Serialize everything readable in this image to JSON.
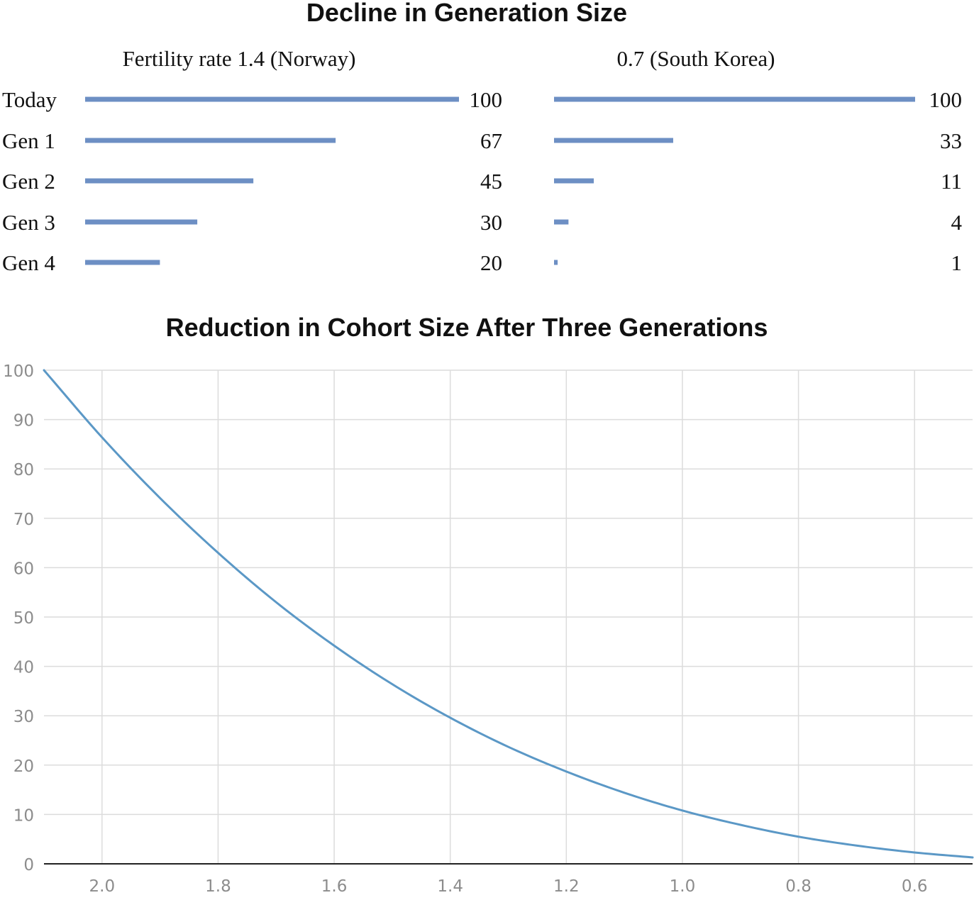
{
  "chart_data": [
    {
      "type": "bar",
      "orientation": "horizontal",
      "title": "Decline in Generation Size",
      "categories": [
        "Today",
        "Gen 1",
        "Gen 2",
        "Gen 3",
        "Gen 4"
      ],
      "panels": [
        {
          "label": "Fertility rate 1.4 (Norway)",
          "values": [
            100,
            67,
            45,
            30,
            20
          ]
        },
        {
          "label": "0.7 (South Korea)",
          "values": [
            100,
            33,
            11,
            4,
            1
          ]
        }
      ],
      "value_max": 100,
      "bar_color": "#6d8fc4",
      "data_labels": true
    },
    {
      "type": "line",
      "title": "Reduction in Cohort Size After Three Generations",
      "xlim": [
        2.1,
        0.5
      ],
      "x_reversed": true,
      "ylim": [
        0,
        100
      ],
      "xticks": [
        2.0,
        1.8,
        1.6,
        1.4,
        1.2,
        1.0,
        0.8,
        0.6
      ],
      "xtick_labels": [
        "2.0",
        "1.8",
        "1.6",
        "1.4",
        "1.2",
        "1.0",
        "0.8",
        "0.6"
      ],
      "yticks": [
        0,
        10,
        20,
        30,
        40,
        50,
        60,
        70,
        80,
        90,
        100
      ],
      "ytick_labels": [
        "0",
        "10",
        "20",
        "30",
        "40",
        "50",
        "60",
        "70",
        "80",
        "90",
        "100"
      ],
      "grid": true,
      "line_color": "#5b98c6",
      "x": [
        2.1,
        2.0,
        1.9,
        1.8,
        1.7,
        1.6,
        1.5,
        1.4,
        1.3,
        1.2,
        1.1,
        1.0,
        0.9,
        0.8,
        0.7,
        0.6,
        0.5
      ],
      "y": [
        100,
        86.4,
        74.1,
        63.0,
        53.0,
        44.2,
        36.4,
        29.6,
        23.7,
        18.7,
        14.4,
        10.8,
        7.9,
        5.5,
        3.7,
        2.3,
        1.3
      ]
    }
  ]
}
